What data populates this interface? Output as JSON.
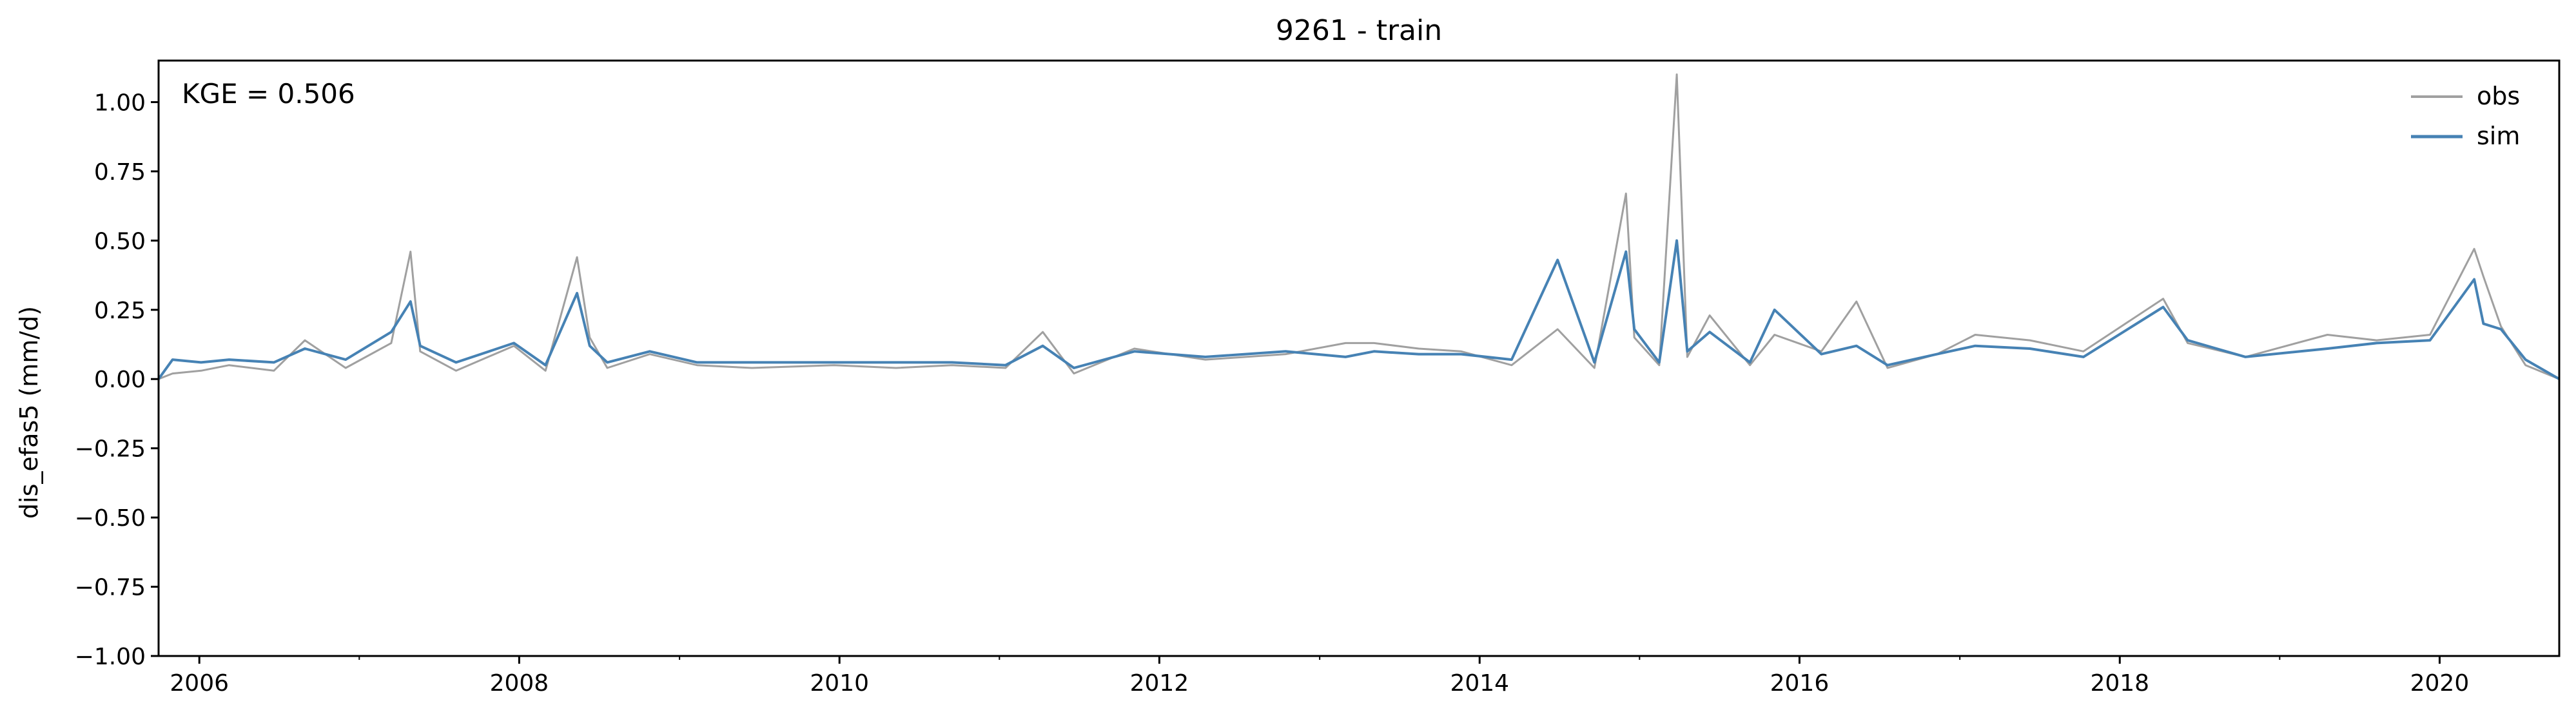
{
  "chart_data": {
    "type": "line",
    "title": "9261 - train",
    "ylabel": "dis_efas5 (mm/d)",
    "xlabel": "",
    "xlim": [
      "2005-09-30",
      "2020-09-30"
    ],
    "ylim": [
      -1.0,
      1.15
    ],
    "x_ticks": [
      "2006",
      "2008",
      "2010",
      "2012",
      "2014",
      "2016",
      "2018",
      "2020"
    ],
    "y_ticks": [
      "−1.00",
      "−0.75",
      "−0.50",
      "−0.25",
      "0.00",
      "0.25",
      "0.50",
      "0.75",
      "1.00"
    ],
    "annotation": "KGE = 0.506",
    "legend": {
      "position": "top-right",
      "entries": [
        "obs",
        "sim"
      ]
    },
    "colors": {
      "obs": "#a0a0a0",
      "sim": "#4682b4"
    },
    "grid": false,
    "series": [
      {
        "name": "obs",
        "points": [
          [
            "2005-09-30",
            0.0
          ],
          [
            "2005-11-01",
            0.02
          ],
          [
            "2006-01-05",
            0.03
          ],
          [
            "2006-03-10",
            0.05
          ],
          [
            "2006-06-20",
            0.03
          ],
          [
            "2006-08-30",
            0.14
          ],
          [
            "2006-12-01",
            0.04
          ],
          [
            "2007-03-15",
            0.13
          ],
          [
            "2007-04-28",
            0.46
          ],
          [
            "2007-05-20",
            0.1
          ],
          [
            "2007-08-10",
            0.03
          ],
          [
            "2007-12-20",
            0.12
          ],
          [
            "2008-03-01",
            0.03
          ],
          [
            "2008-05-12",
            0.44
          ],
          [
            "2008-06-10",
            0.15
          ],
          [
            "2008-07-20",
            0.04
          ],
          [
            "2008-10-25",
            0.09
          ],
          [
            "2009-02-10",
            0.05
          ],
          [
            "2009-06-15",
            0.04
          ],
          [
            "2009-12-20",
            0.05
          ],
          [
            "2010-05-10",
            0.04
          ],
          [
            "2010-09-15",
            0.05
          ],
          [
            "2011-01-15",
            0.04
          ],
          [
            "2011-04-10",
            0.17
          ],
          [
            "2011-06-20",
            0.02
          ],
          [
            "2011-11-05",
            0.11
          ],
          [
            "2012-04-15",
            0.07
          ],
          [
            "2012-10-15",
            0.09
          ],
          [
            "2013-03-01",
            0.13
          ],
          [
            "2013-05-05",
            0.13
          ],
          [
            "2013-08-15",
            0.11
          ],
          [
            "2013-11-20",
            0.1
          ],
          [
            "2014-03-15",
            0.05
          ],
          [
            "2014-06-28",
            0.18
          ],
          [
            "2014-09-20",
            0.04
          ],
          [
            "2014-12-01",
            0.67
          ],
          [
            "2014-12-20",
            0.15
          ],
          [
            "2015-02-15",
            0.05
          ],
          [
            "2015-03-27",
            1.1
          ],
          [
            "2015-04-20",
            0.08
          ],
          [
            "2015-06-10",
            0.23
          ],
          [
            "2015-09-10",
            0.05
          ],
          [
            "2015-11-05",
            0.16
          ],
          [
            "2016-02-20",
            0.1
          ],
          [
            "2016-05-10",
            0.28
          ],
          [
            "2016-07-20",
            0.04
          ],
          [
            "2016-11-10",
            0.09
          ],
          [
            "2017-02-05",
            0.16
          ],
          [
            "2017-06-10",
            0.14
          ],
          [
            "2017-10-10",
            0.1
          ],
          [
            "2018-04-10",
            0.29
          ],
          [
            "2018-06-05",
            0.13
          ],
          [
            "2018-10-15",
            0.08
          ],
          [
            "2019-04-20",
            0.16
          ],
          [
            "2019-08-10",
            0.14
          ],
          [
            "2019-12-10",
            0.16
          ],
          [
            "2020-03-20",
            0.47
          ],
          [
            "2020-04-10",
            0.37
          ],
          [
            "2020-05-20",
            0.19
          ],
          [
            "2020-07-15",
            0.05
          ],
          [
            "2020-09-30",
            0.0
          ]
        ]
      },
      {
        "name": "sim",
        "points": [
          [
            "2005-09-30",
            0.0
          ],
          [
            "2005-11-01",
            0.07
          ],
          [
            "2006-01-05",
            0.06
          ],
          [
            "2006-03-10",
            0.07
          ],
          [
            "2006-06-20",
            0.06
          ],
          [
            "2006-08-30",
            0.11
          ],
          [
            "2006-12-01",
            0.07
          ],
          [
            "2007-03-15",
            0.17
          ],
          [
            "2007-04-28",
            0.28
          ],
          [
            "2007-05-20",
            0.12
          ],
          [
            "2007-08-10",
            0.06
          ],
          [
            "2007-12-20",
            0.13
          ],
          [
            "2008-03-01",
            0.05
          ],
          [
            "2008-05-12",
            0.31
          ],
          [
            "2008-06-10",
            0.12
          ],
          [
            "2008-07-20",
            0.06
          ],
          [
            "2008-10-25",
            0.1
          ],
          [
            "2009-02-10",
            0.06
          ],
          [
            "2009-06-15",
            0.06
          ],
          [
            "2009-12-20",
            0.06
          ],
          [
            "2010-05-10",
            0.06
          ],
          [
            "2010-09-15",
            0.06
          ],
          [
            "2011-01-15",
            0.05
          ],
          [
            "2011-04-10",
            0.12
          ],
          [
            "2011-06-20",
            0.04
          ],
          [
            "2011-11-05",
            0.1
          ],
          [
            "2012-04-15",
            0.08
          ],
          [
            "2012-10-15",
            0.1
          ],
          [
            "2013-03-01",
            0.08
          ],
          [
            "2013-05-05",
            0.1
          ],
          [
            "2013-08-15",
            0.09
          ],
          [
            "2013-11-20",
            0.09
          ],
          [
            "2014-03-15",
            0.07
          ],
          [
            "2014-06-28",
            0.43
          ],
          [
            "2014-09-20",
            0.06
          ],
          [
            "2014-12-01",
            0.46
          ],
          [
            "2014-12-20",
            0.18
          ],
          [
            "2015-02-15",
            0.06
          ],
          [
            "2015-03-27",
            0.5
          ],
          [
            "2015-04-20",
            0.1
          ],
          [
            "2015-06-10",
            0.17
          ],
          [
            "2015-09-10",
            0.06
          ],
          [
            "2015-11-05",
            0.25
          ],
          [
            "2016-02-20",
            0.09
          ],
          [
            "2016-05-10",
            0.12
          ],
          [
            "2016-07-20",
            0.05
          ],
          [
            "2016-11-10",
            0.09
          ],
          [
            "2017-02-05",
            0.12
          ],
          [
            "2017-06-10",
            0.11
          ],
          [
            "2017-10-10",
            0.08
          ],
          [
            "2018-04-10",
            0.26
          ],
          [
            "2018-06-05",
            0.14
          ],
          [
            "2018-10-15",
            0.08
          ],
          [
            "2019-04-20",
            0.11
          ],
          [
            "2019-08-10",
            0.13
          ],
          [
            "2019-12-10",
            0.14
          ],
          [
            "2020-03-20",
            0.36
          ],
          [
            "2020-04-10",
            0.2
          ],
          [
            "2020-05-20",
            0.18
          ],
          [
            "2020-07-15",
            0.07
          ],
          [
            "2020-09-30",
            0.0
          ]
        ]
      }
    ]
  }
}
